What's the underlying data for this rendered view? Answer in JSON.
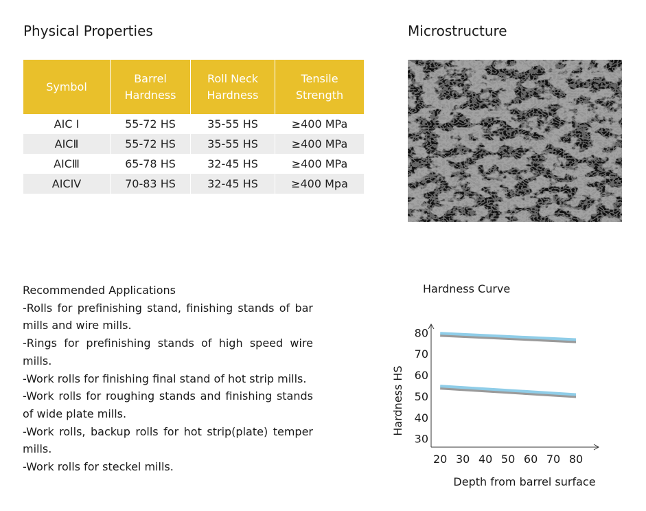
{
  "physical_properties": {
    "title": "Physical Properties",
    "headers": [
      [
        "Symbol"
      ],
      [
        "Barrel",
        "Hardness"
      ],
      [
        "Roll Neck",
        "Hardness"
      ],
      [
        "Tensile",
        "Strength"
      ]
    ],
    "rows": [
      [
        "AIC I",
        "55-72 HS",
        "35-55 HS",
        "≥400 MPa"
      ],
      [
        "AICⅡ",
        "55-72 HS",
        "35-55 HS",
        "≥400 MPa"
      ],
      [
        "AICⅢ",
        "65-78 HS",
        "32-45 HS",
        "≥400 MPa"
      ],
      [
        "AICIV",
        "70-83 HS",
        "32-45 HS",
        "≥400 Mpa"
      ]
    ],
    "header_color": "#e9c02b"
  },
  "microstructure": {
    "title": "Microstructure"
  },
  "applications": {
    "heading": "Recommended Applications",
    "items": [
      "-Rolls for prefinishing stand, finishing stands of bar mills and wire mills.",
      "-Rings for prefinishing stands of high speed wire mills.",
      "-Work rolls for finishing final stand of hot strip mills.",
      "-Work rolls for roughing stands and finishing stands of wide plate mills.",
      "-Work rolls, backup rolls for hot strip(plate) temper mills.",
      "-Work rolls for steckel mills."
    ]
  },
  "chart_data": {
    "type": "line",
    "title": "Hardness Curve",
    "xlabel": "Depth from barrel surface",
    "ylabel": "Hardness HS",
    "x_ticks": [
      20,
      30,
      40,
      50,
      60,
      70,
      80
    ],
    "y_ticks": [
      30,
      40,
      50,
      60,
      70,
      80
    ],
    "xlim": [
      16,
      90
    ],
    "ylim": [
      26,
      84
    ],
    "grid": false,
    "series": [
      {
        "x": [
          20,
          80
        ],
        "values": [
          78.7,
          75.7
        ],
        "color": "#9a9a9a"
      },
      {
        "x": [
          20,
          80
        ],
        "values": [
          79.7,
          76.7
        ],
        "color": "#8fcde8"
      },
      {
        "x": [
          20,
          80
        ],
        "values": [
          53.8,
          49.8
        ],
        "color": "#9a9a9a"
      },
      {
        "x": [
          20,
          80
        ],
        "values": [
          54.8,
          50.8
        ],
        "color": "#8fcde8"
      }
    ]
  }
}
